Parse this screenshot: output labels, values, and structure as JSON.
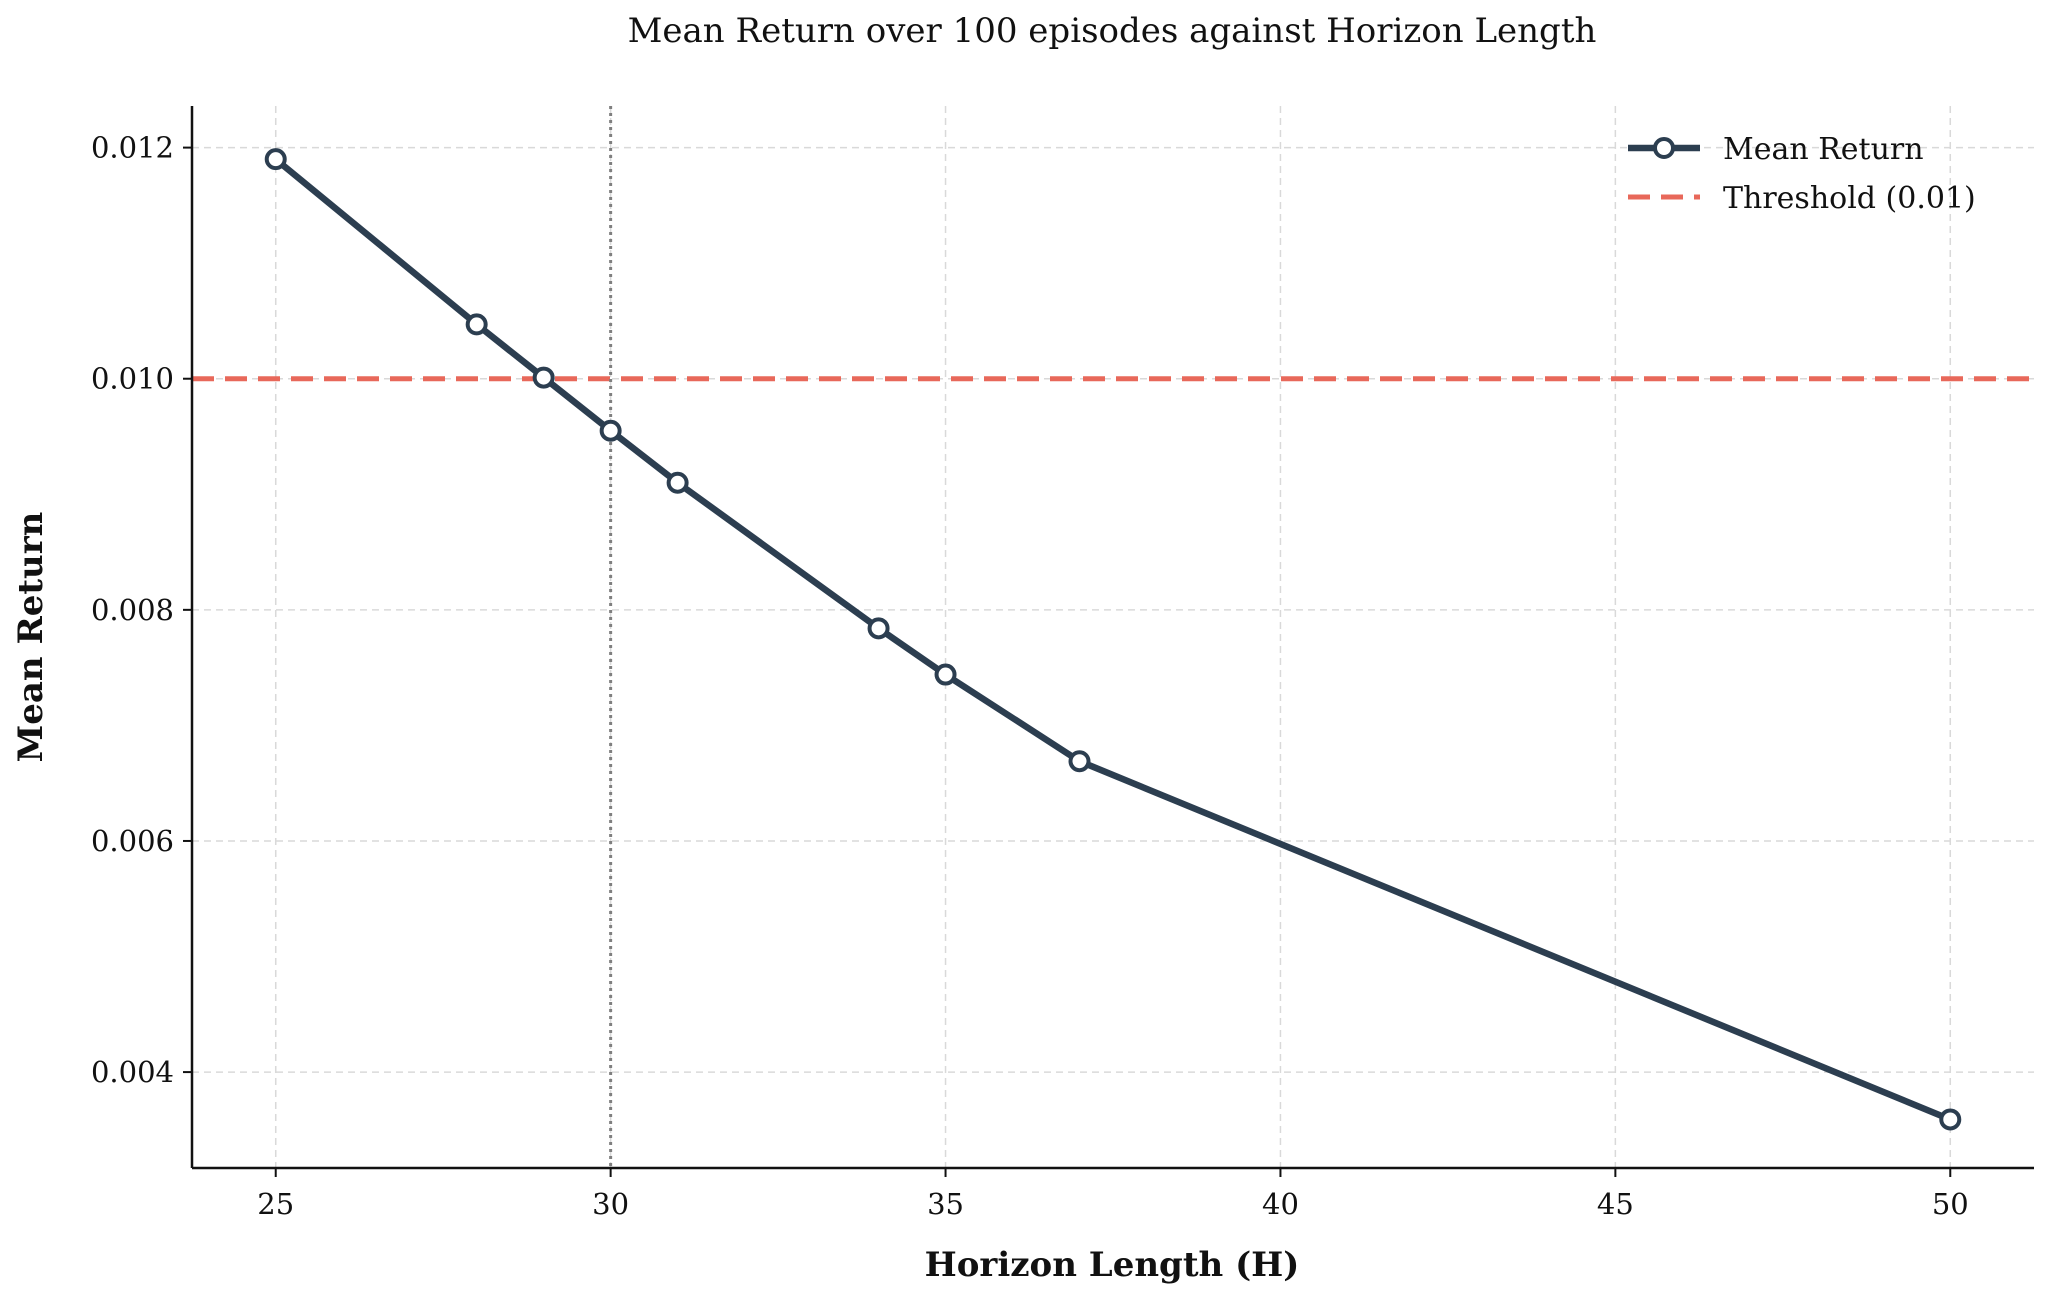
{
  "chart_data": {
    "type": "line",
    "title": "Mean Return over 100 episodes against Horizon Length",
    "xlabel": "Horizon Length (H)",
    "ylabel": "Mean Return",
    "xlim": [
      23.75,
      51.25
    ],
    "ylim": [
      0.00317,
      0.01236
    ],
    "x_ticks": [
      25,
      30,
      35,
      40,
      45,
      50
    ],
    "y_ticks": [
      0.004,
      0.006,
      0.008,
      0.01,
      0.012
    ],
    "x_tick_labels": [
      "25",
      "30",
      "35",
      "40",
      "45",
      "50"
    ],
    "y_tick_labels": [
      "0.004",
      "0.006",
      "0.008",
      "0.010",
      "0.012"
    ],
    "grid": true,
    "legend_position": "top-right",
    "series": [
      {
        "name": "Mean Return",
        "color": "#2c3e50",
        "marker": "open-circle",
        "x": [
          25,
          28,
          29,
          30,
          31,
          34,
          35,
          37,
          50
        ],
        "y": [
          0.0119,
          0.01047,
          0.01001,
          0.00955,
          0.0091,
          0.00784,
          0.00744,
          0.00669,
          0.00359
        ]
      }
    ],
    "reference_lines": [
      {
        "name": "Threshold (0.01)",
        "orientation": "horizontal",
        "value": 0.01,
        "color": "#e8685a",
        "style": "dashed",
        "in_legend": true
      },
      {
        "orientation": "vertical",
        "value": 30,
        "color": "#7f7f7f",
        "style": "dotted",
        "in_legend": false
      }
    ]
  }
}
